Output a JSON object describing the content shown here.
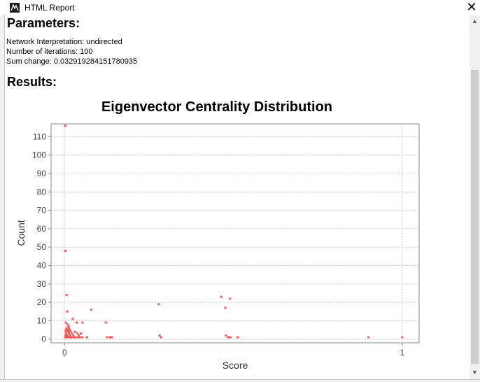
{
  "window": {
    "title": "HTML Report",
    "close_label": "✕"
  },
  "report": {
    "parameters_heading": "Parameters:",
    "parameters": [
      "Network Interpretation: undirected",
      "Number of iterations: 100",
      "Sum change: 0.032919284151780935"
    ],
    "results_heading": "Results:"
  },
  "chart_data": {
    "type": "scatter",
    "title": "Eigenvector Centrality Distribution",
    "xlabel": "Score",
    "ylabel": "Count",
    "xlim": [
      -0.04,
      1.05
    ],
    "ylim": [
      -2,
      117
    ],
    "x_ticks": [
      0,
      1
    ],
    "y_ticks": [
      0,
      10,
      20,
      30,
      40,
      50,
      60,
      70,
      80,
      90,
      100,
      110
    ],
    "grid": true,
    "point_color": "#ff5555",
    "points": [
      [
        0.002,
        116
      ],
      [
        0.002,
        48
      ],
      [
        0.006,
        24
      ],
      [
        0.008,
        15
      ],
      [
        0.004,
        9
      ],
      [
        0.009,
        8
      ],
      [
        0.012,
        7
      ],
      [
        0.006,
        6
      ],
      [
        0.013,
        6
      ],
      [
        0.004,
        5
      ],
      [
        0.009,
        5
      ],
      [
        0.015,
        5
      ],
      [
        0.003,
        4
      ],
      [
        0.011,
        4
      ],
      [
        0.018,
        4
      ],
      [
        0.005,
        3
      ],
      [
        0.013,
        3
      ],
      [
        0.022,
        3
      ],
      [
        0.003,
        2
      ],
      [
        0.008,
        2
      ],
      [
        0.017,
        2
      ],
      [
        0.026,
        2
      ],
      [
        0.002,
        1
      ],
      [
        0.006,
        1
      ],
      [
        0.011,
        1
      ],
      [
        0.016,
        1
      ],
      [
        0.021,
        1
      ],
      [
        0.027,
        1
      ],
      [
        0.031,
        1
      ],
      [
        0.038,
        1
      ],
      [
        0.045,
        1
      ],
      [
        0.052,
        1
      ],
      [
        0.024,
        11
      ],
      [
        0.036,
        9
      ],
      [
        0.053,
        9
      ],
      [
        0.048,
        3
      ],
      [
        0.042,
        2
      ],
      [
        0.038,
        3
      ],
      [
        0.031,
        4
      ],
      [
        0.066,
        1
      ],
      [
        0.079,
        16
      ],
      [
        0.122,
        9
      ],
      [
        0.126,
        1
      ],
      [
        0.135,
        1
      ],
      [
        0.14,
        1
      ],
      [
        0.279,
        19
      ],
      [
        0.281,
        2
      ],
      [
        0.286,
        1
      ],
      [
        0.464,
        23
      ],
      [
        0.476,
        17
      ],
      [
        0.49,
        22
      ],
      [
        0.478,
        2
      ],
      [
        0.484,
        1
      ],
      [
        0.491,
        1
      ],
      [
        0.512,
        1
      ],
      [
        0.9,
        1
      ],
      [
        1.0,
        1
      ]
    ]
  }
}
